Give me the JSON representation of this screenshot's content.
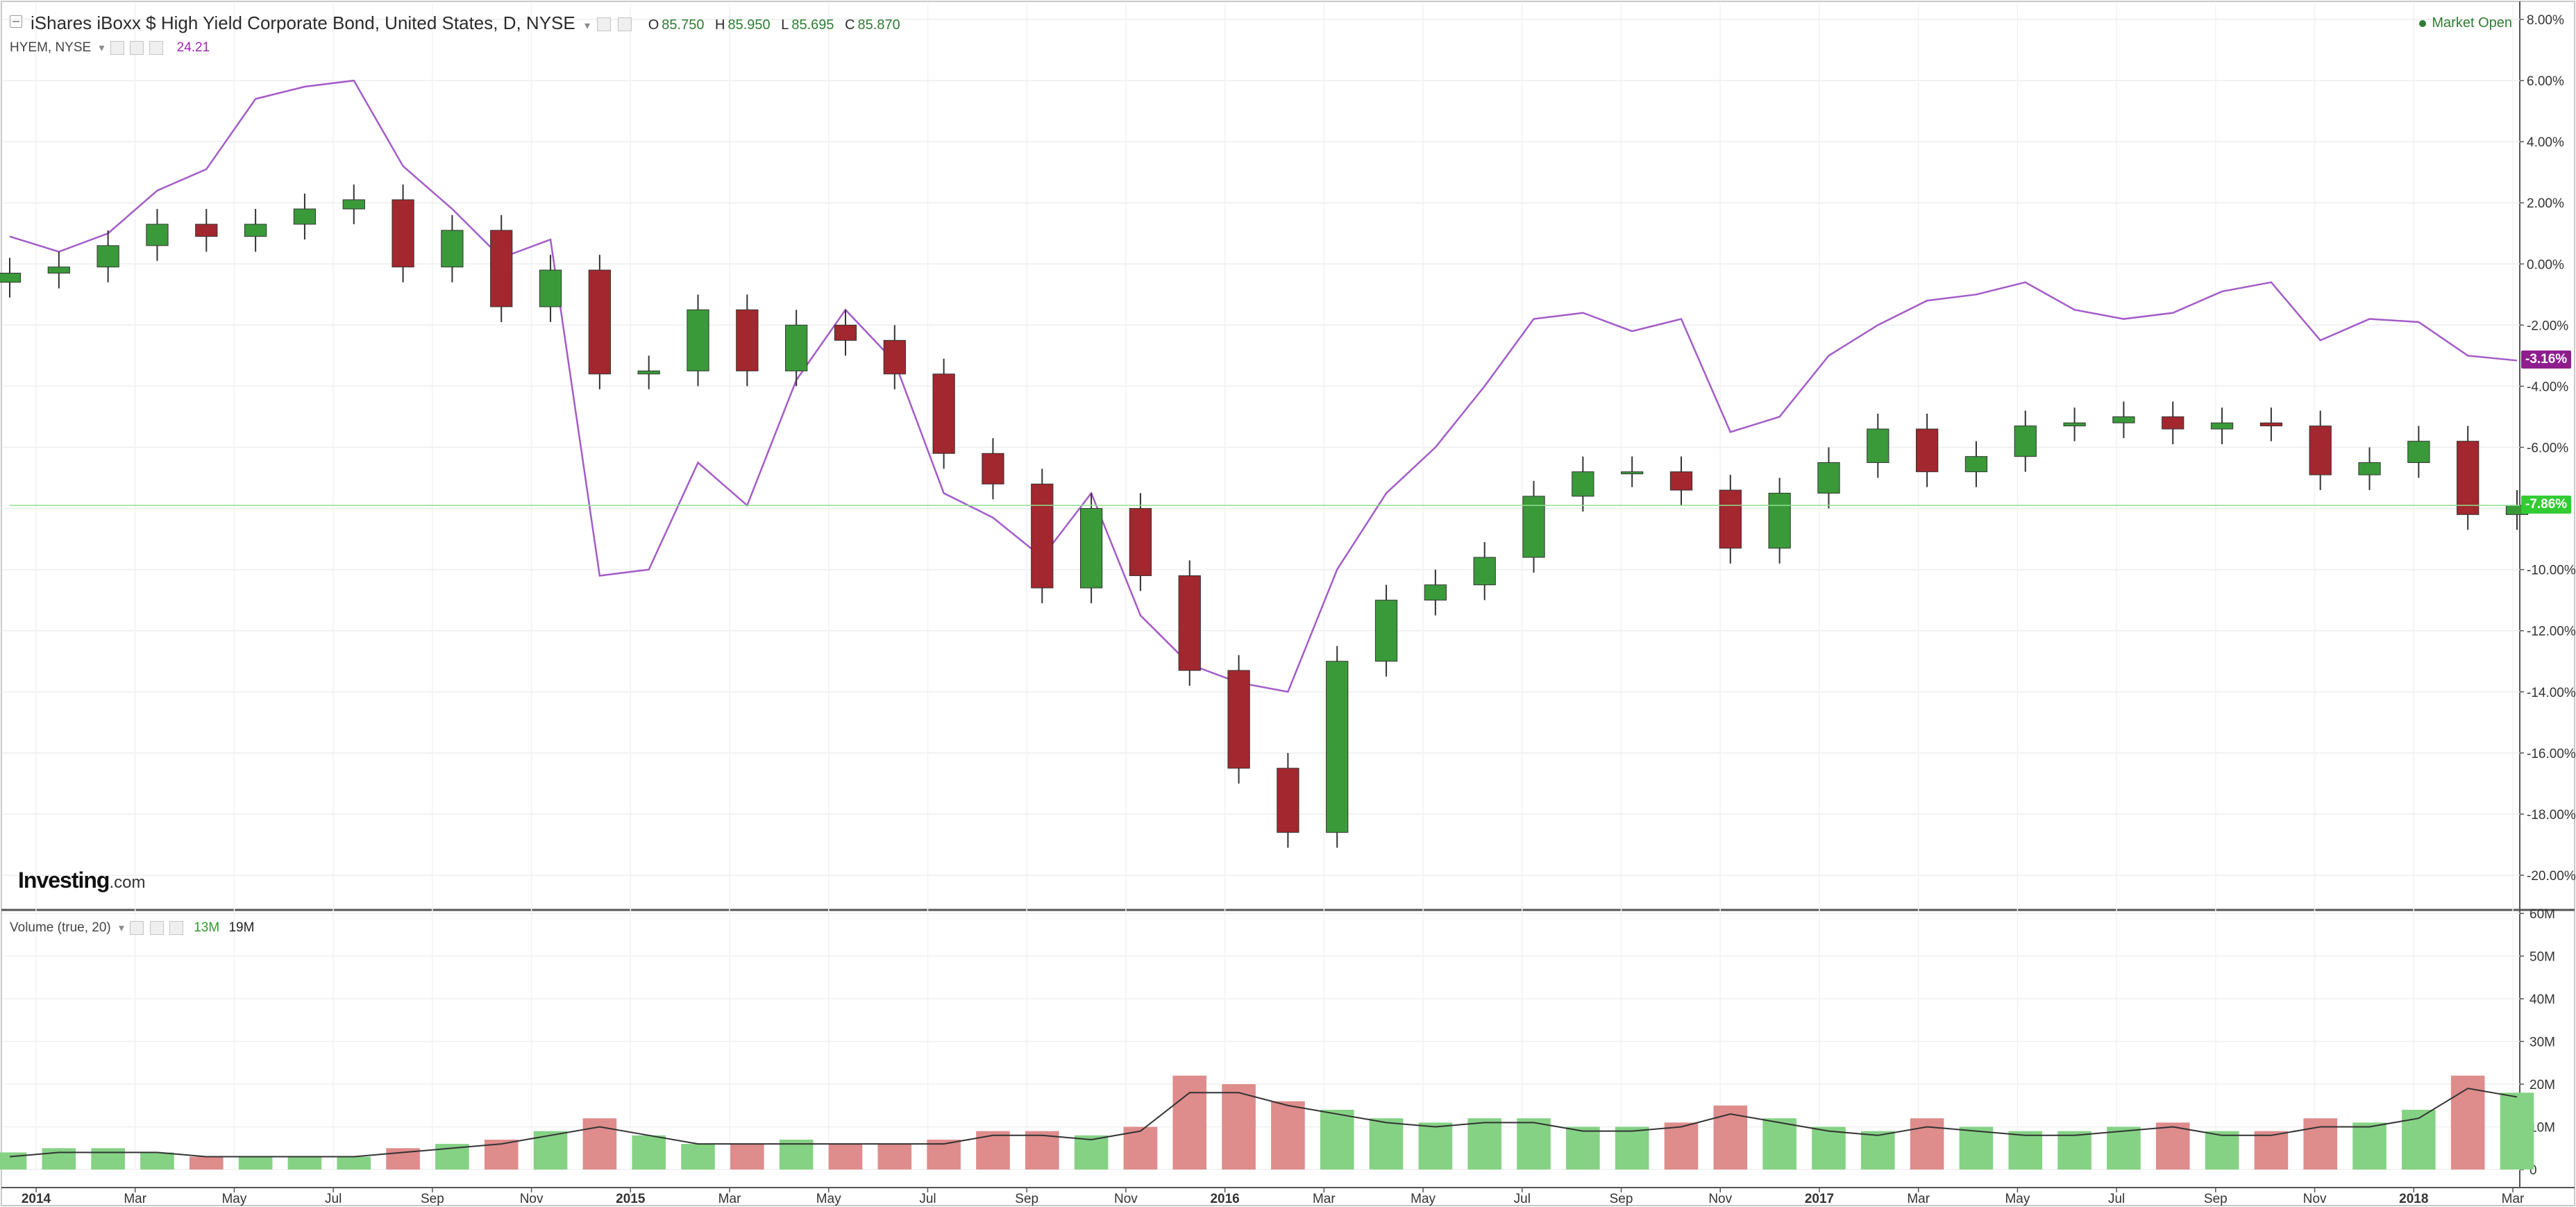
{
  "header": {
    "title": "iShares iBoxx $ High Yield Corporate Bond, United States, D, NYSE",
    "ohlc": {
      "o_label": "O",
      "o": "85.750",
      "h_label": "H",
      "h": "85.950",
      "l_label": "L",
      "l": "85.695",
      "c_label": "C",
      "c": "85.870"
    },
    "market_status": "Market Open"
  },
  "compare": {
    "symbol": "HYEM, NYSE",
    "value": "24.21"
  },
  "volume_legend": {
    "label": "Volume (true, 20)",
    "value1": "13M",
    "value2": "19M"
  },
  "logo": {
    "text": "Investing",
    "suffix": ".com"
  },
  "colors": {
    "up": "#3a9a3a",
    "down": "#a3272e",
    "compare_line": "#a45bc8",
    "vol_up": "#85d285",
    "vol_down": "#df8c8c",
    "vol_ma": "#333333",
    "last_tag_hyg": "#33cc33",
    "last_tag_hyem": "#8e1e8e"
  },
  "chart_data": [
    {
      "type": "candlestick",
      "series": [
        {
          "name": "iShares iBoxx $ High Yield Corporate Bond",
          "unit": "% change",
          "x": [
            "2013-12",
            "2014-01",
            "2014-02",
            "2014-03",
            "2014-04",
            "2014-05",
            "2014-06",
            "2014-07",
            "2014-08",
            "2014-09",
            "2014-10",
            "2014-11",
            "2014-12",
            "2015-01",
            "2015-02",
            "2015-03",
            "2015-04",
            "2015-05",
            "2015-06",
            "2015-07",
            "2015-08",
            "2015-09",
            "2015-10",
            "2015-11",
            "2015-12",
            "2016-01",
            "2016-02",
            "2016-03",
            "2016-04",
            "2016-05",
            "2016-06",
            "2016-07",
            "2016-08",
            "2016-09",
            "2016-10",
            "2016-11",
            "2016-12",
            "2017-01",
            "2017-02",
            "2017-03",
            "2017-04",
            "2017-05",
            "2017-06",
            "2017-07",
            "2017-08",
            "2017-09",
            "2017-10",
            "2017-11",
            "2017-12",
            "2018-01",
            "2018-02",
            "2018-03"
          ],
          "y": [
            -0.3,
            -0.1,
            0.6,
            1.3,
            0.9,
            1.3,
            1.8,
            2.1,
            -0.1,
            1.1,
            -1.4,
            -0.2,
            -3.6,
            -3.5,
            -1.5,
            -3.5,
            -2.0,
            -2.5,
            -3.6,
            -6.2,
            -7.2,
            -10.6,
            -8.0,
            -10.2,
            -13.3,
            -16.5,
            -18.6,
            -13.0,
            -11.0,
            -10.5,
            -9.6,
            -7.6,
            -6.8,
            -6.8,
            -7.4,
            -9.3,
            -7.5,
            -6.5,
            -5.4,
            -6.8,
            -6.3,
            -5.3,
            -5.2,
            -5.0,
            -5.4,
            -5.2,
            -5.3,
            -6.9,
            -6.5,
            -5.8,
            -8.2,
            -7.9
          ]
        },
        {
          "name": "HYEM, NYSE",
          "unit": "% change",
          "type": "line",
          "x": [
            "2013-12",
            "2014-01",
            "2014-02",
            "2014-03",
            "2014-04",
            "2014-05",
            "2014-06",
            "2014-07",
            "2014-08",
            "2014-09",
            "2014-10",
            "2014-11",
            "2014-12",
            "2015-01",
            "2015-02",
            "2015-03",
            "2015-04",
            "2015-05",
            "2015-06",
            "2015-07",
            "2015-08",
            "2015-09",
            "2015-10",
            "2015-11",
            "2015-12",
            "2016-01",
            "2016-02",
            "2016-03",
            "2016-04",
            "2016-05",
            "2016-06",
            "2016-07",
            "2016-08",
            "2016-09",
            "2016-10",
            "2016-11",
            "2016-12",
            "2017-01",
            "2017-02",
            "2017-03",
            "2017-04",
            "2017-05",
            "2017-06",
            "2017-07",
            "2017-08",
            "2017-09",
            "2017-10",
            "2017-11",
            "2017-12",
            "2018-01",
            "2018-02",
            "2018-03"
          ],
          "y": [
            0.9,
            0.4,
            1.0,
            2.4,
            3.1,
            5.4,
            5.8,
            6.0,
            3.2,
            1.8,
            0.2,
            0.8,
            -10.2,
            -10.0,
            -6.5,
            -7.9,
            -3.8,
            -1.5,
            -3.2,
            -7.5,
            -8.3,
            -9.6,
            -7.5,
            -11.5,
            -13.1,
            -13.7,
            -14.0,
            -10.0,
            -7.5,
            -6.0,
            -4.0,
            -1.8,
            -1.6,
            -2.2,
            -1.8,
            -5.5,
            -5.0,
            -3.0,
            -2.0,
            -1.2,
            -1.0,
            -0.6,
            -1.5,
            -1.8,
            -1.6,
            -0.9,
            -0.6,
            -2.5,
            -1.8,
            -1.9,
            -3.0,
            -3.16
          ]
        }
      ],
      "y_axis": {
        "ticks": [
          "8.00%",
          "6.00%",
          "4.00%",
          "2.00%",
          "0.00%",
          "-2.00%",
          "-4.00%",
          "-6.00%",
          "-8.00%",
          "-10.00%",
          "-12.00%",
          "-14.00%",
          "-16.00%",
          "-18.00%",
          "-20.00%"
        ],
        "ylim": [
          -21,
          8.5
        ]
      },
      "last_labels": {
        "compare": "-3.16%",
        "main": "-7.86%"
      },
      "grid": true
    },
    {
      "type": "bar",
      "name": "Volume (true, 20)",
      "x": [
        "2013-12",
        "2014-01",
        "2014-02",
        "2014-03",
        "2014-04",
        "2014-05",
        "2014-06",
        "2014-07",
        "2014-08",
        "2014-09",
        "2014-10",
        "2014-11",
        "2014-12",
        "2015-01",
        "2015-02",
        "2015-03",
        "2015-04",
        "2015-05",
        "2015-06",
        "2015-07",
        "2015-08",
        "2015-09",
        "2015-10",
        "2015-11",
        "2015-12",
        "2016-01",
        "2016-02",
        "2016-03",
        "2016-04",
        "2016-05",
        "2016-06",
        "2016-07",
        "2016-08",
        "2016-09",
        "2016-10",
        "2016-11",
        "2016-12",
        "2017-01",
        "2017-02",
        "2017-03",
        "2017-04",
        "2017-05",
        "2017-06",
        "2017-07",
        "2017-08",
        "2017-09",
        "2017-10",
        "2017-11",
        "2017-12",
        "2018-01",
        "2018-02",
        "2018-03"
      ],
      "values_millions": [
        4,
        5,
        5,
        4,
        3,
        3,
        3,
        3,
        5,
        6,
        7,
        9,
        12,
        8,
        6,
        6,
        7,
        6,
        6,
        7,
        9,
        9,
        8,
        10,
        22,
        20,
        16,
        14,
        12,
        11,
        12,
        12,
        10,
        10,
        11,
        15,
        12,
        10,
        9,
        12,
        10,
        9,
        9,
        10,
        11,
        9,
        9,
        12,
        11,
        14,
        22,
        18
      ],
      "ma_values_millions": [
        3,
        4,
        4,
        4,
        3,
        3,
        3,
        3,
        4,
        5,
        6,
        8,
        10,
        8,
        6,
        6,
        6,
        6,
        6,
        6,
        8,
        8,
        7,
        9,
        18,
        18,
        15,
        13,
        11,
        10,
        11,
        11,
        9,
        9,
        10,
        13,
        11,
        9,
        8,
        10,
        9,
        8,
        8,
        9,
        10,
        8,
        8,
        10,
        10,
        12,
        19,
        17
      ],
      "y_axis": {
        "ticks": [
          "60M",
          "50M",
          "40M",
          "30M",
          "20M",
          "10M",
          "0"
        ],
        "ylim": [
          0,
          60
        ]
      },
      "x_ticks": [
        "2014",
        "Mar",
        "May",
        "Jul",
        "Sep",
        "Nov",
        "2015",
        "Mar",
        "May",
        "Jul",
        "Sep",
        "Nov",
        "2016",
        "Mar",
        "May",
        "Jul",
        "Sep",
        "Nov",
        "2017",
        "Mar",
        "May",
        "Jul",
        "Sep",
        "Nov",
        "2018",
        "Mar"
      ],
      "x_tick_bold": [
        "2014",
        "2015",
        "2016",
        "2017",
        "2018"
      ]
    }
  ]
}
